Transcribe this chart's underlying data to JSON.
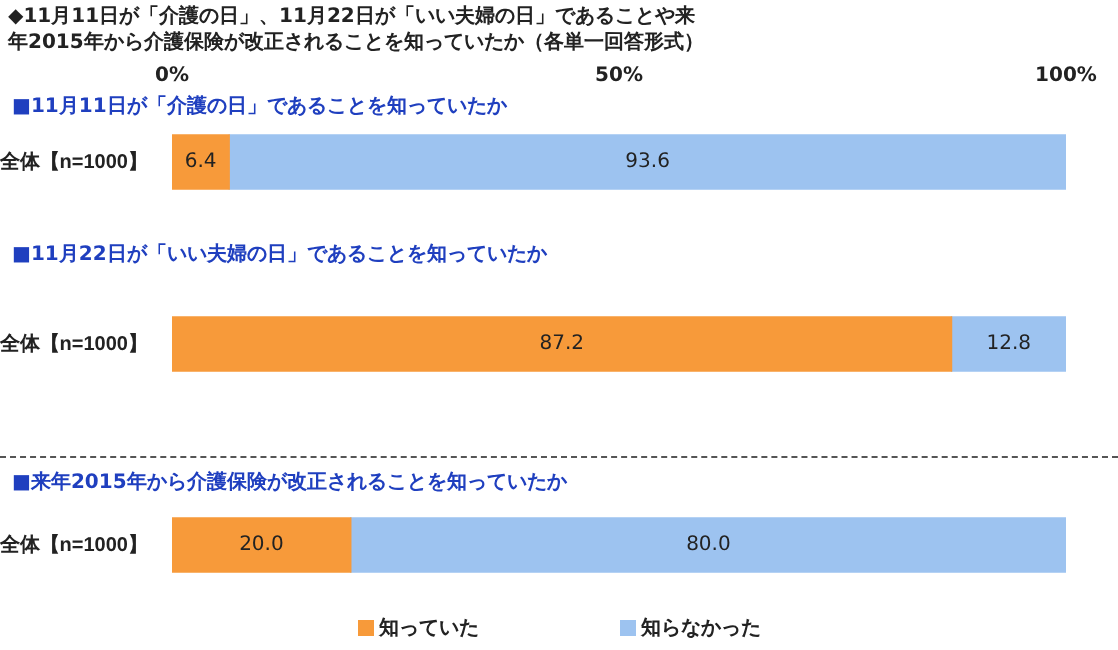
{
  "chart_data": [
    {
      "type": "bar",
      "title": "◆11月11日が「介護の日」、11月22日が「いい夫婦の日」であることや来年2015年から介護保険が改正されることを知っていたか（各単一回答形式）",
      "subtitle": "■11月11日が「介護の日」であることを知っていたか",
      "categories": [
        "全体【n=1000】"
      ],
      "orientation": "horizontal",
      "stacked": true,
      "xlim": [
        0,
        100
      ],
      "xticks": [
        {
          "value": 0,
          "label": "0%"
        },
        {
          "value": 50,
          "label": "50%"
        },
        {
          "value": 100,
          "label": "100%"
        }
      ],
      "series": [
        {
          "color": "#f79a3a",
          "values": [
            6.4
          ],
          "value_labels": [
            "6.4"
          ]
        },
        {
          "color": "#9dc3f0",
          "values": [
            93.6
          ],
          "value_labels": [
            "93.6"
          ]
        }
      ]
    },
    {
      "type": "bar",
      "subtitle": "■11月22日が「いい夫婦の日」であることを知っていたか",
      "categories": [
        "全体【n=1000】"
      ],
      "orientation": "horizontal",
      "stacked": true,
      "xlim": [
        0,
        100
      ],
      "tick_labels": "y",
      "series": [
        {
          "color": "#f79a3a",
          "values": [
            87.2
          ],
          "value_labels": [
            "87.2"
          ]
        },
        {
          "color": "#9dc3f0",
          "values": [
            12.8
          ],
          "value_labels": [
            "12.8"
          ]
        }
      ]
    },
    {
      "type": "bar",
      "subtitle": "■来年2015年から介護保険が改正されることを知っていたか",
      "categories": [
        "全体【n=1000】"
      ],
      "orientation": "horizontal",
      "stacked": true,
      "xlim": [
        0,
        100
      ],
      "tick_labels": "y",
      "legend": "bottom",
      "series": [
        {
          "name": "知っていた",
          "color": "#f79a3a",
          "values": [
            20.0
          ],
          "value_labels": [
            "20.0"
          ]
        },
        {
          "name": "知らなかった",
          "color": "#9dc3f0",
          "values": [
            80.0
          ],
          "value_labels": [
            "80.0"
          ]
        }
      ]
    }
  ]
}
